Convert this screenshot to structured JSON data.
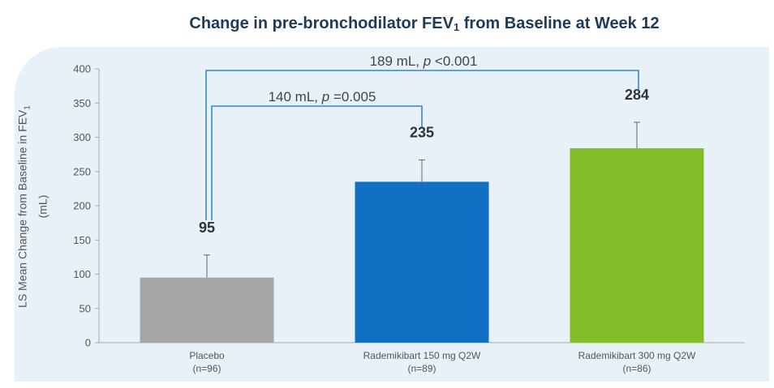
{
  "title_main": "Change in pre-bronchodilator FEV",
  "title_sub": "1",
  "title_end": " from Baseline at Week 12",
  "ylabel_main": "LS Mean Change from Baseline in FEV",
  "ylabel_sub": "1",
  "ylabel_unit": "(mL)",
  "colors": {
    "placebo": "#a6a6a6",
    "dose150": "#1170c4",
    "dose300": "#84bd2a",
    "axis": "#aaaaaa",
    "text": "#555555",
    "label": "#333333"
  },
  "chart_data": {
    "type": "bar",
    "title": "Change in pre-bronchodilator FEV1 from Baseline at Week 12",
    "ylabel": "LS Mean Change from Baseline in FEV1 (mL)",
    "ylim": [
      0,
      400
    ],
    "yticks": [
      0,
      50,
      100,
      150,
      200,
      250,
      300,
      350,
      400
    ],
    "categories": [
      {
        "name": "Placebo",
        "n": "(n=96)"
      },
      {
        "name": "Rademikibart 150 mg Q2W",
        "n": "(n=89)"
      },
      {
        "name": "Rademikibart 300 mg Q2W",
        "n": "(n=86)"
      }
    ],
    "values": [
      95,
      235,
      284
    ],
    "data_labels": [
      "95",
      "235",
      "284"
    ],
    "error_upper": [
      128,
      267,
      322
    ],
    "comparisons": [
      {
        "from": 0,
        "to": 1,
        "label_prefix": "140 mL, ",
        "label_p": "p",
        "label_suffix": " =0.005"
      },
      {
        "from": 0,
        "to": 2,
        "label_prefix": "189 mL, ",
        "label_p": "p",
        "label_suffix": " <0.001"
      }
    ]
  }
}
